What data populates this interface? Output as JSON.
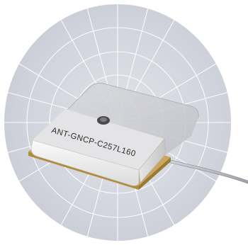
{
  "image": {
    "subject": "ceramic patch antenna module on a polar radiation grid",
    "part_label": "ANT-GNCP-C257L160",
    "colors": {
      "background": "#ffffff",
      "radiation_disc": "#d6d8e0",
      "grid_lines": "#ffffff",
      "radome_top": "#cfd0d4",
      "antenna_body": "#f1f1f1",
      "pcb_layer": "#c9a75f",
      "pcb_copper": "#b08c3c",
      "cable": "#b7b9bf"
    }
  }
}
